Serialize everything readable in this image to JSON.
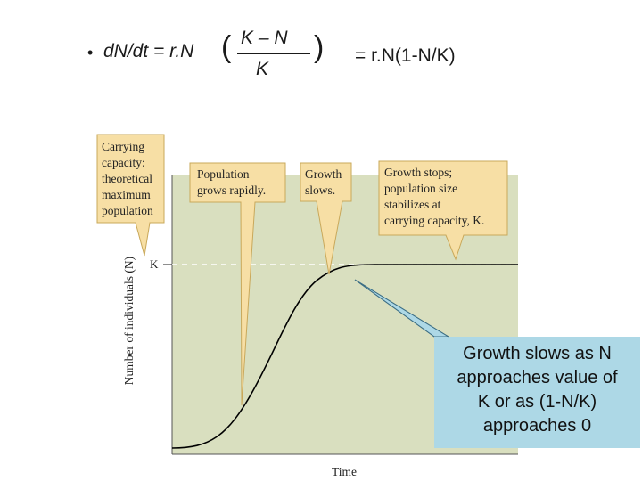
{
  "equation": {
    "bullet": "•",
    "lhs": "dN/dt = r.N",
    "numerator": "K – N",
    "denominator": "K",
    "open_paren": "(",
    "close_paren": ")",
    "rhs": "= r.N(1-N/K)"
  },
  "graph": {
    "ylabel": "Number of individuals (N)",
    "xlabel": "Time",
    "k_label": "K",
    "callouts": {
      "carrying_capacity": [
        "Carrying",
        "capacity:",
        "theoretical",
        "maximum",
        "population"
      ],
      "grows_rapidly": [
        "Population",
        "grows rapidly."
      ],
      "growth_slows": [
        "Growth",
        "slows."
      ],
      "growth_stops": [
        "Growth stops;",
        "population size",
        "stabilizes at",
        "carrying capacity, K."
      ]
    },
    "note": [
      "Growth slows as N",
      "approaches value of",
      "K or as (1-N/K)",
      "approaches 0"
    ]
  },
  "colors": {
    "plot_bg": "#d9dfbf",
    "callout_bg": "#f7dfa5",
    "note_bg": "#add8e6",
    "curve": "#000000"
  }
}
